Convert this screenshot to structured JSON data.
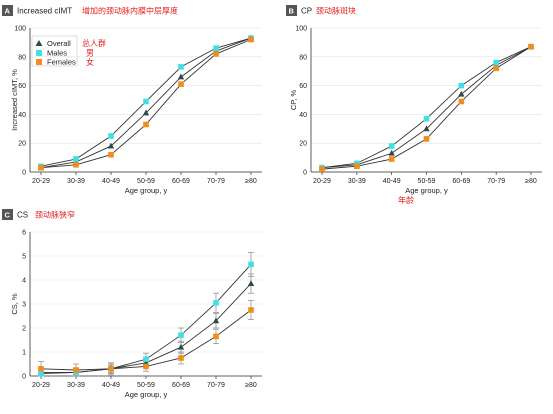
{
  "colors": {
    "overall": "#2e4a4e",
    "males": "#3ee0e6",
    "females": "#f28c1c",
    "line": "#333333",
    "annotation": "#e02020",
    "badge": "#555555"
  },
  "chart_data": [
    {
      "panel": "A",
      "type": "line",
      "title": "Increased cIMT",
      "annotation": "增加的颈动脉内膜中层厚度",
      "xlabel": "Age group, y",
      "ylabel": "Increased cIMT, %",
      "categories": [
        "20-29",
        "30-39",
        "40-49",
        "50-59",
        "60-69",
        "70-79",
        "≥80"
      ],
      "ylim": [
        0,
        100
      ],
      "yticks": [
        0,
        20,
        40,
        60,
        80,
        100
      ],
      "legend": {
        "position": "top-left",
        "entries": [
          "Overall",
          "Males",
          "Females"
        ],
        "annotations": [
          "总人群",
          "男",
          "女"
        ]
      },
      "series": [
        {
          "name": "Overall",
          "values": [
            3,
            7,
            18,
            41,
            66,
            84,
            93
          ]
        },
        {
          "name": "Males",
          "values": [
            4,
            9,
            25,
            49,
            73,
            86,
            93
          ]
        },
        {
          "name": "Females",
          "values": [
            3,
            5,
            12,
            33,
            61,
            82,
            92
          ]
        }
      ]
    },
    {
      "panel": "B",
      "type": "line",
      "title": "CP",
      "annotation": "颈动脉斑块",
      "xlabel": "Age group, y",
      "xlabel_annotation": "年龄",
      "ylabel": "CP, %",
      "categories": [
        "20-29",
        "30-39",
        "40-49",
        "50-59",
        "60-69",
        "70-79",
        "≥80"
      ],
      "ylim": [
        0,
        100
      ],
      "yticks": [
        0,
        20,
        40,
        60,
        80,
        100
      ],
      "series": [
        {
          "name": "Overall",
          "values": [
            3,
            5,
            13,
            30,
            54,
            74,
            87
          ]
        },
        {
          "name": "Males",
          "values": [
            3,
            6,
            18,
            37,
            60,
            76,
            87
          ]
        },
        {
          "name": "Females",
          "values": [
            2,
            4,
            9,
            23,
            49,
            72,
            87
          ]
        }
      ]
    },
    {
      "panel": "C",
      "type": "line",
      "title": "CS",
      "annotation": "颈动脉狭窄",
      "xlabel": "Age group, y",
      "ylabel": "CS, %",
      "categories": [
        "20-29",
        "30-39",
        "40-49",
        "50-59",
        "60-69",
        "70-79",
        "≥80"
      ],
      "ylim": [
        0,
        6
      ],
      "yticks": [
        0,
        1,
        2,
        3,
        4,
        5,
        6
      ],
      "error_bars": true,
      "series": [
        {
          "name": "Overall",
          "values": [
            0.15,
            0.15,
            0.3,
            0.55,
            1.2,
            2.3,
            3.85
          ],
          "err": [
            0.15,
            0.15,
            0.15,
            0.2,
            0.25,
            0.3,
            0.4
          ]
        },
        {
          "name": "Males",
          "values": [
            0.1,
            0.15,
            0.3,
            0.7,
            1.7,
            3.05,
            4.65
          ],
          "err": [
            0.1,
            0.15,
            0.2,
            0.25,
            0.3,
            0.4,
            0.5
          ]
        },
        {
          "name": "Females",
          "values": [
            0.3,
            0.25,
            0.3,
            0.4,
            0.75,
            1.65,
            2.75
          ],
          "err": [
            0.3,
            0.25,
            0.25,
            0.2,
            0.25,
            0.3,
            0.4
          ]
        }
      ]
    }
  ]
}
